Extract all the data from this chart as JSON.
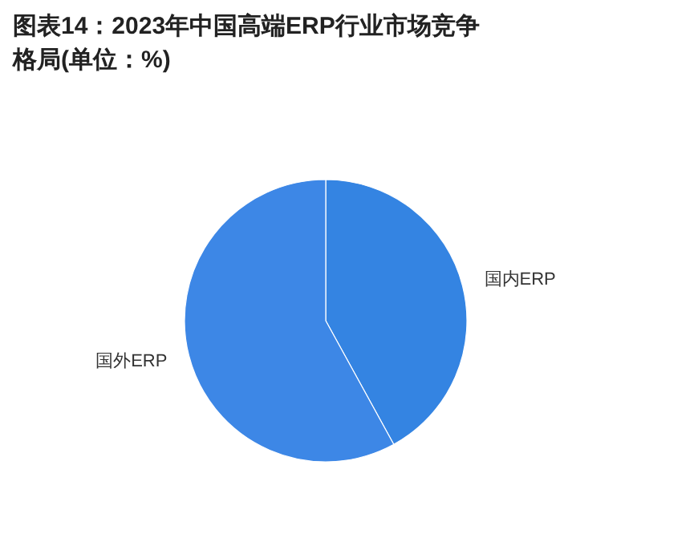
{
  "chart_data": {
    "type": "pie",
    "title": "图表14：2023年中国高端ERP行业市场竞争格局(单位：%)",
    "categories": [
      "国内ERP",
      "国外ERP"
    ],
    "values": [
      42,
      58
    ],
    "colors": [
      "#3484e2",
      "#3d87e6"
    ]
  }
}
